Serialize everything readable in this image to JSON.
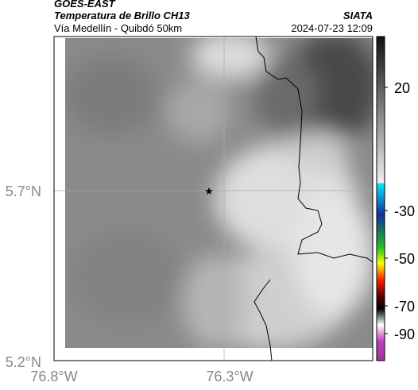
{
  "header": {
    "satellite": "GOES-EAST",
    "product": "Temperatura de Brillo CH13",
    "source": "SIATA",
    "route": "Vía Medellín - Quibdó 50km",
    "datetime": "2024-07-23 12:09"
  },
  "map": {
    "lat_labels": [
      "5.7°N",
      "5.2°N"
    ],
    "lon_labels": [
      "76.8°W",
      "76.3°W"
    ]
  },
  "colorbar": {
    "ticks": [
      "20",
      "-30",
      "-50",
      "-70",
      "-90"
    ]
  }
}
